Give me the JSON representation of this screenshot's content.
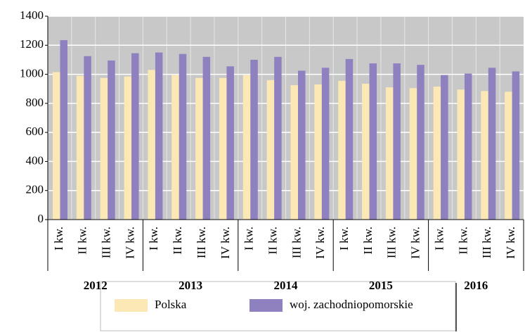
{
  "chart_data": {
    "type": "bar",
    "categories": [
      "I kw.",
      "II kw.",
      "III kw.",
      "IV kw.",
      "I kw.",
      "II kw.",
      "III kw.",
      "IV kw.",
      "I kw.",
      "II kw.",
      "III kw.",
      "IV kw.",
      "I kw.",
      "II kw.",
      "III kw.",
      "IV kw.",
      "I kw.",
      "II kw.",
      "III kw.",
      "IV kw."
    ],
    "groups": [
      "2012",
      "2013",
      "2014",
      "2015",
      "2016"
    ],
    "series": [
      {
        "name": "Polska",
        "color": "#fbe8b5",
        "values": [
          1015,
          990,
          975,
          985,
          1030,
          995,
          975,
          975,
          995,
          960,
          925,
          930,
          955,
          935,
          910,
          905,
          915,
          895,
          885,
          880
        ]
      },
      {
        "name": "woj. zachodniopomorskie",
        "color": "#8f80c0",
        "values": [
          1235,
          1125,
          1095,
          1145,
          1150,
          1140,
          1120,
          1055,
          1100,
          1120,
          1025,
          1045,
          1105,
          1075,
          1075,
          1065,
          995,
          1005,
          1045,
          1020
        ]
      }
    ],
    "ylim": [
      0,
      1400
    ],
    "yticks": [
      0,
      200,
      400,
      600,
      800,
      1000,
      1200,
      1400
    ],
    "grid": true
  }
}
